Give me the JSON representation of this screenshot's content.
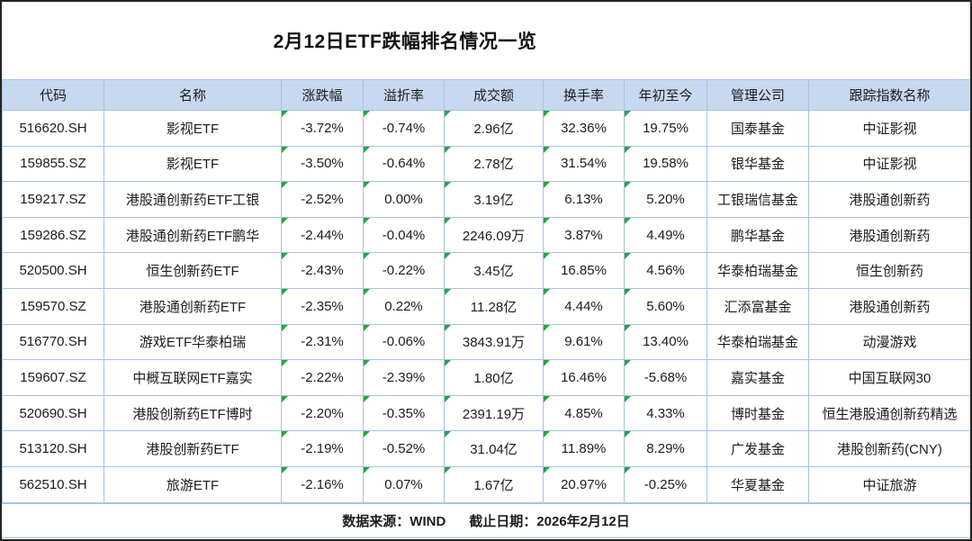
{
  "title": "2月12日ETF跌幅排名情况一览",
  "chart_data": {
    "type": "table",
    "title": "2月12日ETF跌幅排名情况一览",
    "columns": [
      "代码",
      "名称",
      "涨跌幅",
      "溢折率",
      "成交额",
      "换手率",
      "年初至今",
      "管理公司",
      "跟踪指数名称"
    ],
    "rows": [
      [
        "516620.SH",
        "影视ETF",
        "-3.72%",
        "-0.74%",
        "2.96亿",
        "32.36%",
        "19.75%",
        "国泰基金",
        "中证影视"
      ],
      [
        "159855.SZ",
        "影视ETF",
        "-3.50%",
        "-0.64%",
        "2.78亿",
        "31.54%",
        "19.58%",
        "银华基金",
        "中证影视"
      ],
      [
        "159217.SZ",
        "港股通创新药ETF工银",
        "-2.52%",
        "0.00%",
        "3.19亿",
        "6.13%",
        "5.20%",
        "工银瑞信基金",
        "港股通创新药"
      ],
      [
        "159286.SZ",
        "港股通创新药ETF鹏华",
        "-2.44%",
        "-0.04%",
        "2246.09万",
        "3.87%",
        "4.49%",
        "鹏华基金",
        "港股通创新药"
      ],
      [
        "520500.SH",
        "恒生创新药ETF",
        "-2.43%",
        "-0.22%",
        "3.45亿",
        "16.85%",
        "4.56%",
        "华泰柏瑞基金",
        "恒生创新药"
      ],
      [
        "159570.SZ",
        "港股通创新药ETF",
        "-2.35%",
        "0.22%",
        "11.28亿",
        "4.44%",
        "5.60%",
        "汇添富基金",
        "港股通创新药"
      ],
      [
        "516770.SH",
        "游戏ETF华泰柏瑞",
        "-2.31%",
        "-0.06%",
        "3843.91万",
        "9.61%",
        "13.40%",
        "华泰柏瑞基金",
        "动漫游戏"
      ],
      [
        "159607.SZ",
        "中概互联网ETF嘉实",
        "-2.22%",
        "-2.39%",
        "1.80亿",
        "16.46%",
        "-5.68%",
        "嘉实基金",
        "中国互联网30"
      ],
      [
        "520690.SH",
        "港股创新药ETF博时",
        "-2.20%",
        "-0.35%",
        "2391.19万",
        "4.85%",
        "4.33%",
        "博时基金",
        "恒生港股通创新药精选"
      ],
      [
        "513120.SH",
        "港股创新药ETF",
        "-2.19%",
        "-0.52%",
        "31.04亿",
        "11.89%",
        "8.29%",
        "广发基金",
        "港股创新药(CNY)"
      ],
      [
        "562510.SH",
        "旅游ETF",
        "-2.16%",
        "0.07%",
        "1.67亿",
        "20.97%",
        "-0.25%",
        "华夏基金",
        "中证旅游"
      ]
    ],
    "flag_columns": [
      2,
      3,
      4,
      5,
      6
    ]
  },
  "footer": {
    "source": "数据来源：WIND",
    "date": "截止日期：2026年2月12日"
  },
  "colors": {
    "header_bg": "#c7d9f0",
    "grid": "#a5c3e4",
    "flag_green": "#27a341"
  }
}
